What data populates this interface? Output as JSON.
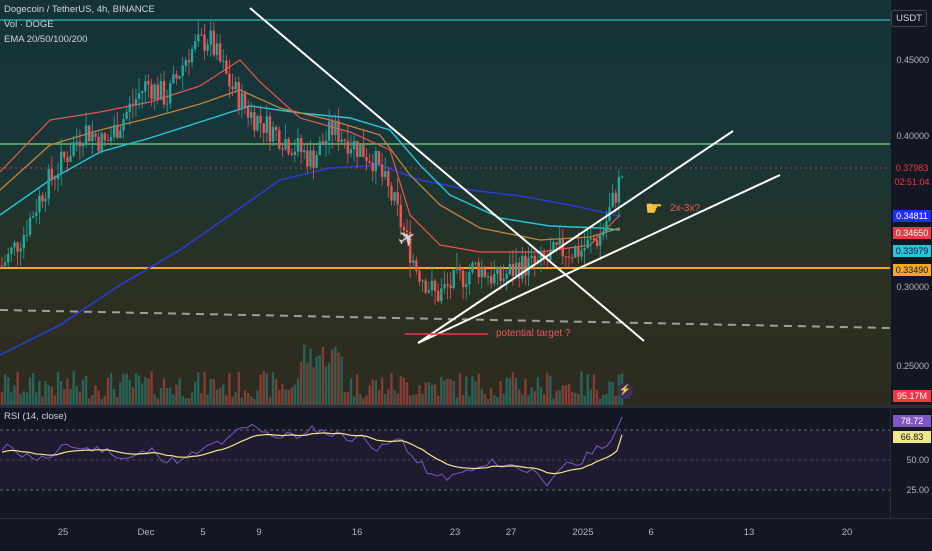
{
  "chart": {
    "legend_title": "Dogecoin / TetherUS, 4h, BINANCE",
    "legend_vol": "Vol · DOGE",
    "legend_ema": "EMA 20/50/100/200",
    "currency": "USDT"
  },
  "price_scale": {
    "ticks": [
      "0.45000",
      "0.40000",
      "0.30000",
      "0.25000"
    ],
    "tags": [
      {
        "value": "0.37983",
        "bg": "#131722",
        "fg": "#f23645"
      },
      {
        "value": "02:51:04",
        "bg": "#131722",
        "fg": "#f23645"
      },
      {
        "value": "0.34811",
        "bg": "#1e2eff",
        "fg": "#ffffff"
      },
      {
        "value": "0.34650",
        "bg": "#f23645",
        "fg": "#ffffff"
      },
      {
        "value": "0.33979",
        "bg": "#26c6da",
        "fg": "#131722"
      },
      {
        "value": "0.33490",
        "bg": "#f5a623",
        "fg": "#131722"
      },
      {
        "value": "95.17M",
        "bg": "#f23645",
        "fg": "#ffffff"
      }
    ]
  },
  "annotations": {
    "target_label": "potential target ?",
    "ratio_label": "2x-3x?",
    "plane_icon": "airplane-icon",
    "hand_icon": "pointing-hand-icon",
    "bolt_icon": "lightning-icon"
  },
  "rsi": {
    "legend": "RSI (14, close)",
    "ticks": [
      "50.00",
      "25.00"
    ],
    "tags": [
      {
        "value": "78.72",
        "bg": "#7e57c2",
        "fg": "#ffffff"
      },
      {
        "value": "66.83",
        "bg": "#f0e68c",
        "fg": "#131722"
      }
    ]
  },
  "time_axis": {
    "labels": [
      "25",
      "Dec",
      "5",
      "9",
      "16",
      "23",
      "27",
      "2025",
      "6",
      "13",
      "20"
    ]
  },
  "chart_data": {
    "type": "candlestick",
    "symbol": "Dogecoin / TetherUS",
    "interval": "4h",
    "exchange": "BINANCE",
    "x_labels": [
      "25",
      "Dec",
      "5",
      "9",
      "16",
      "23",
      "27",
      "2025",
      "6",
      "13",
      "20"
    ],
    "price_ticks": [
      0.45,
      0.4,
      0.3,
      0.25
    ],
    "last_price": 0.37983,
    "countdown": "02:51:04",
    "ema_values": {
      "ema_a": 0.34811,
      "ema_b": 0.3465,
      "ema_c": 0.33979,
      "ema_d": 0.3349
    },
    "volume_last": "95.17M",
    "horizontal_levels": [
      0.4933,
      0.397,
      0.3349
    ],
    "close_path": [
      0.32,
      0.34,
      0.37,
      0.39,
      0.41,
      0.4,
      0.42,
      0.44,
      0.43,
      0.46,
      0.47,
      0.44,
      0.42,
      0.41,
      0.4,
      0.39,
      0.41,
      0.4,
      0.39,
      0.36,
      0.32,
      0.3,
      0.31,
      0.32,
      0.31,
      0.32,
      0.32,
      0.33,
      0.33,
      0.34,
      0.38
    ],
    "rsi": {
      "period": 14,
      "source": "close",
      "value": 78.72,
      "ma_value": 66.83,
      "levels": [
        70,
        50,
        30
      ]
    }
  }
}
